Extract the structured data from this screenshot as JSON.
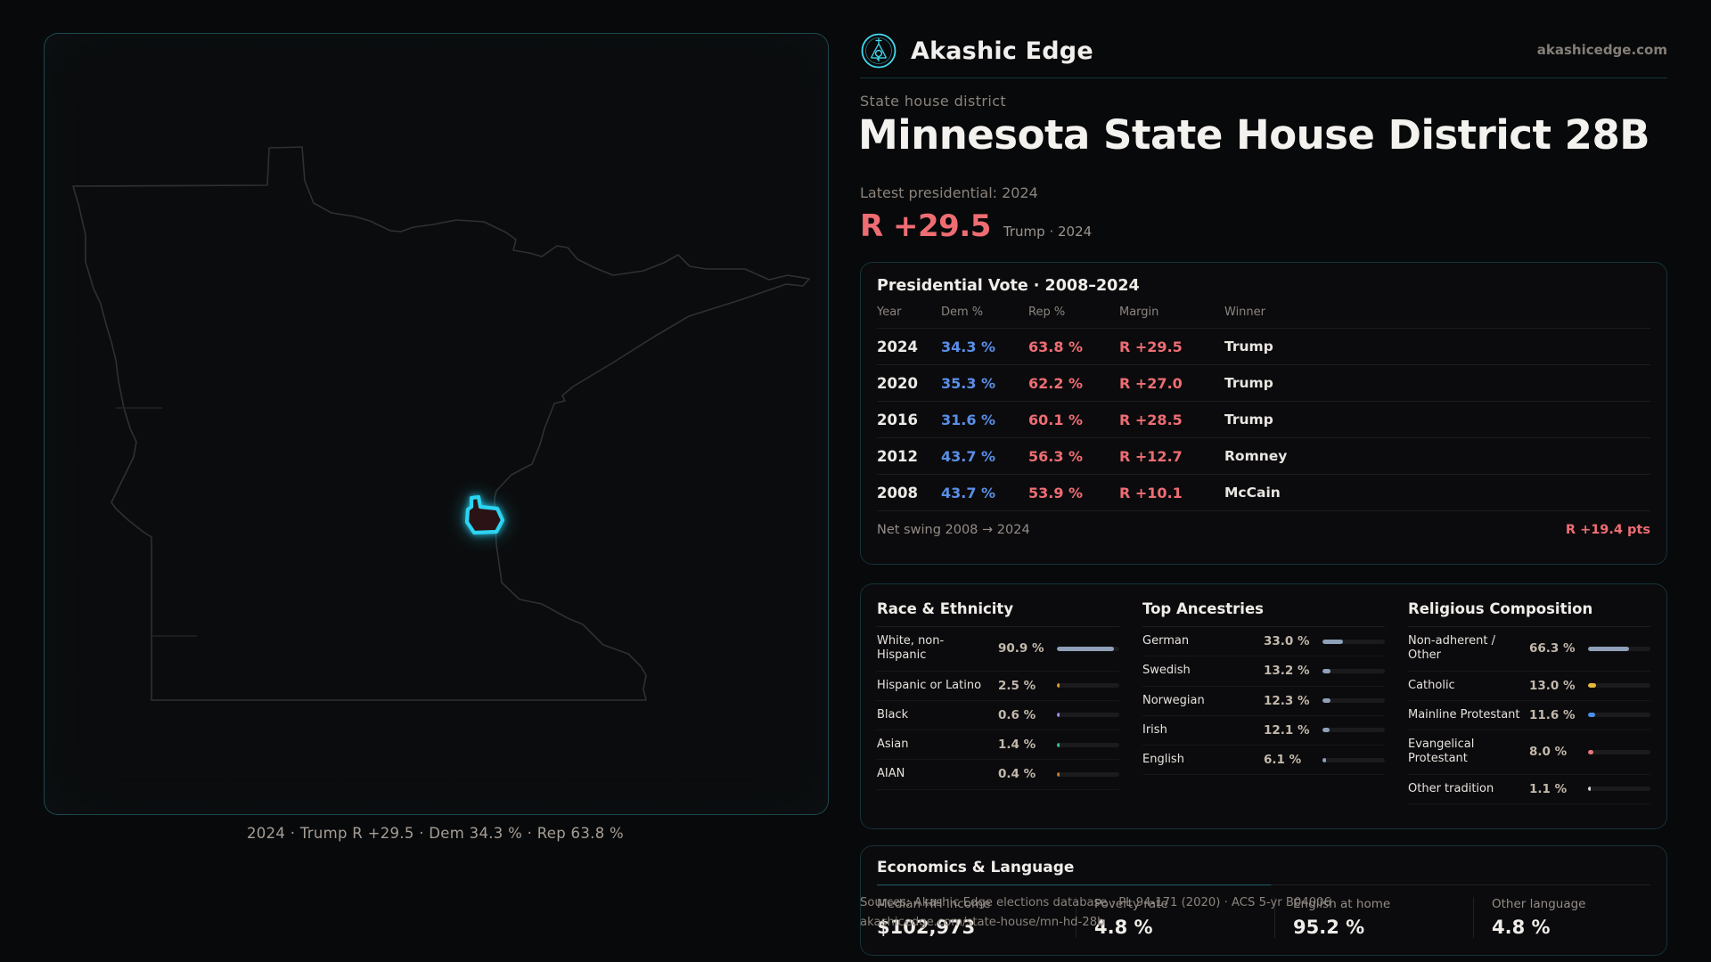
{
  "brand": {
    "name": "Akashic Edge",
    "domain": "akashicedge.com"
  },
  "page": {
    "kicker": "State house district",
    "title": "Minnesota State House District 28B",
    "latest_label": "Latest presidential: 2024",
    "headline": {
      "margin": "R +29.5",
      "detail": "Trump · 2024"
    }
  },
  "map": {
    "caption": "2024 · Trump R +29.5 · Dem 34.3 % · Rep 63.8 %",
    "district_color": "#2bd4f2"
  },
  "colors": {
    "accent": "#2bd4f2",
    "dem_blue": "#5a8fe8",
    "rep_red": "#ee6d73"
  },
  "vote_table": {
    "title": "Presidential Vote · 2008–2024",
    "columns": [
      "Year",
      "Dem %",
      "Rep %",
      "Margin",
      "Winner"
    ],
    "rows": [
      {
        "year": "2024",
        "dem": "34.3 %",
        "rep": "63.8 %",
        "margin": "R +29.5",
        "winner": "Trump"
      },
      {
        "year": "2020",
        "dem": "35.3 %",
        "rep": "62.2 %",
        "margin": "R +27.0",
        "winner": "Trump"
      },
      {
        "year": "2016",
        "dem": "31.6 %",
        "rep": "60.1 %",
        "margin": "R +28.5",
        "winner": "Trump"
      },
      {
        "year": "2012",
        "dem": "43.7 %",
        "rep": "56.3 %",
        "margin": "R +12.7",
        "winner": "Romney"
      },
      {
        "year": "2008",
        "dem": "43.7 %",
        "rep": "53.9 %",
        "margin": "R +10.1",
        "winner": "McCain"
      }
    ],
    "footer": {
      "label": "Net swing 2008 → 2024",
      "value": "R +19.4 pts"
    }
  },
  "panels": [
    {
      "id": "race",
      "title": "Race & Ethnicity",
      "rows": [
        {
          "label": "White, non-Hispanic",
          "value": "90.9 %",
          "pct": 90.9,
          "color": "#8fa0b8"
        },
        {
          "label": "Hispanic or Latino",
          "value": "2.5 %",
          "pct": 2.5,
          "color": "#e09a2e"
        },
        {
          "label": "Black",
          "value": "0.6 %",
          "pct": 0.6,
          "color": "#9b8cf0"
        },
        {
          "label": "Asian",
          "value": "1.4 %",
          "pct": 1.4,
          "color": "#2fbf8f"
        },
        {
          "label": "AIAN",
          "value": "0.4 %",
          "pct": 0.4,
          "color": "#c07830"
        }
      ]
    },
    {
      "id": "ancestries",
      "title": "Top Ancestries",
      "rows": [
        {
          "label": "German",
          "value": "33.0 %",
          "pct": 33.0,
          "color": "#8fa0b8"
        },
        {
          "label": "Swedish",
          "value": "13.2 %",
          "pct": 13.2,
          "color": "#8fa0b8"
        },
        {
          "label": "Norwegian",
          "value": "12.3 %",
          "pct": 12.3,
          "color": "#8fa0b8"
        },
        {
          "label": "Irish",
          "value": "12.1 %",
          "pct": 12.1,
          "color": "#8fa0b8"
        },
        {
          "label": "English",
          "value": "6.1 %",
          "pct": 6.1,
          "color": "#8fa0b8"
        }
      ]
    },
    {
      "id": "religion",
      "title": "Religious Composition",
      "rows": [
        {
          "label": "Non-adherent / Other",
          "value": "66.3 %",
          "pct": 66.3,
          "color": "#8fa0b8"
        },
        {
          "label": "Catholic",
          "value": "13.0 %",
          "pct": 13.0,
          "color": "#e5b93c"
        },
        {
          "label": "Mainline Protestant",
          "value": "11.6 %",
          "pct": 11.6,
          "color": "#4a8fe8"
        },
        {
          "label": "Evangelical Protestant",
          "value": "8.0 %",
          "pct": 8.0,
          "color": "#e87878"
        },
        {
          "label": "Other tradition",
          "value": "1.1 %",
          "pct": 1.1,
          "color": "#d8d8d8"
        }
      ]
    }
  ],
  "economics": {
    "title": "Economics & Language",
    "stats": [
      {
        "label": "Median HH income",
        "value": "$102,973"
      },
      {
        "label": "Poverty rate",
        "value": "4.8 %"
      },
      {
        "label": "English at home",
        "value": "95.2 %"
      },
      {
        "label": "Other language",
        "value": "4.8 %"
      }
    ]
  },
  "sources": {
    "line1": "Sources: Akashic Edge elections database · PL 94-171 (2020) · ACS 5-yr B04006",
    "line2": "akashicedge.com/state-house/mn-hd-28b"
  }
}
